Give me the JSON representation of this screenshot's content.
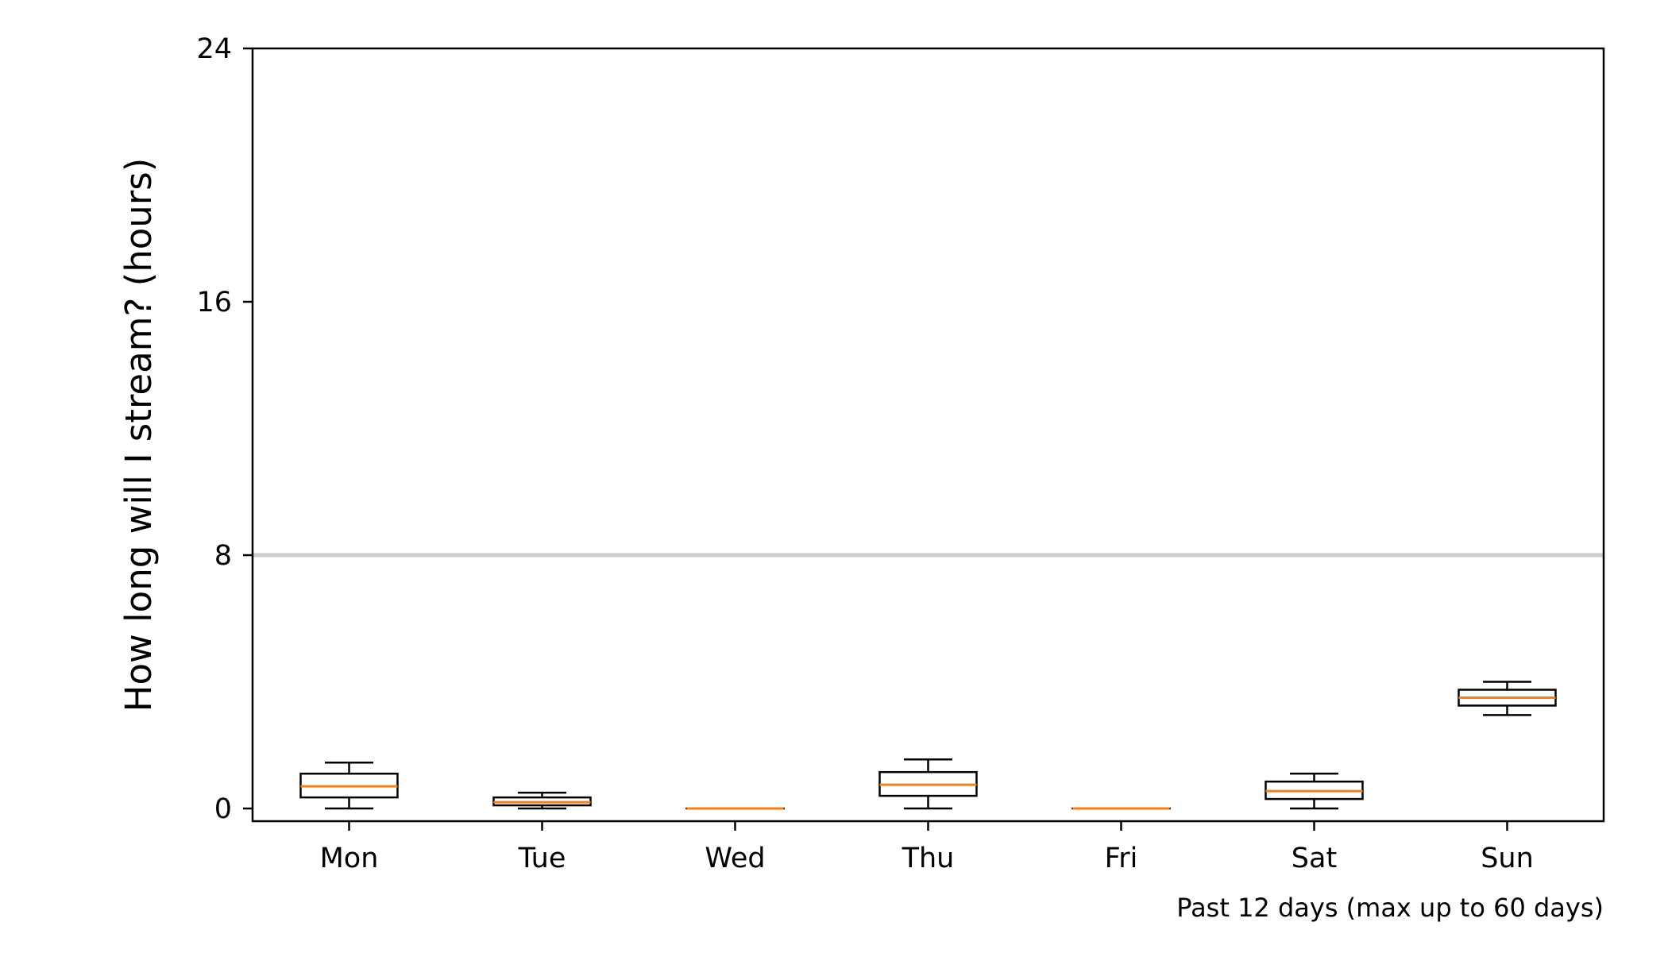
{
  "chart_data": {
    "type": "boxplot",
    "title": "",
    "xlabel": "",
    "ylabel": "How long will I stream? (hours)",
    "note": "Past 12 days (max up to 60 days)",
    "ylim": [
      -0.4,
      24
    ],
    "yticks": [
      0,
      8,
      16,
      24
    ],
    "reference_line": {
      "y": 8,
      "color": "#cccccc"
    },
    "grid": false,
    "box_color": "#000000",
    "median_color": "#ff7f0e",
    "categories": [
      "Mon",
      "Tue",
      "Wed",
      "Thu",
      "Fri",
      "Sat",
      "Sun"
    ],
    "boxes": [
      {
        "label": "Mon",
        "whisker_low": 0.0,
        "q1": 0.35,
        "median": 0.7,
        "q3": 1.1,
        "whisker_high": 1.45
      },
      {
        "label": "Tue",
        "whisker_low": 0.0,
        "q1": 0.1,
        "median": 0.2,
        "q3": 0.35,
        "whisker_high": 0.5
      },
      {
        "label": "Wed",
        "whisker_low": 0.0,
        "q1": 0.0,
        "median": 0.0,
        "q3": 0.0,
        "whisker_high": 0.0
      },
      {
        "label": "Thu",
        "whisker_low": 0.0,
        "q1": 0.4,
        "median": 0.75,
        "q3": 1.15,
        "whisker_high": 1.55
      },
      {
        "label": "Fri",
        "whisker_low": 0.0,
        "q1": 0.0,
        "median": 0.0,
        "q3": 0.0,
        "whisker_high": 0.0
      },
      {
        "label": "Sat",
        "whisker_low": 0.0,
        "q1": 0.3,
        "median": 0.55,
        "q3": 0.85,
        "whisker_high": 1.1
      },
      {
        "label": "Sun",
        "whisker_low": 2.95,
        "q1": 3.25,
        "median": 3.5,
        "q3": 3.75,
        "whisker_high": 4.0
      }
    ]
  }
}
